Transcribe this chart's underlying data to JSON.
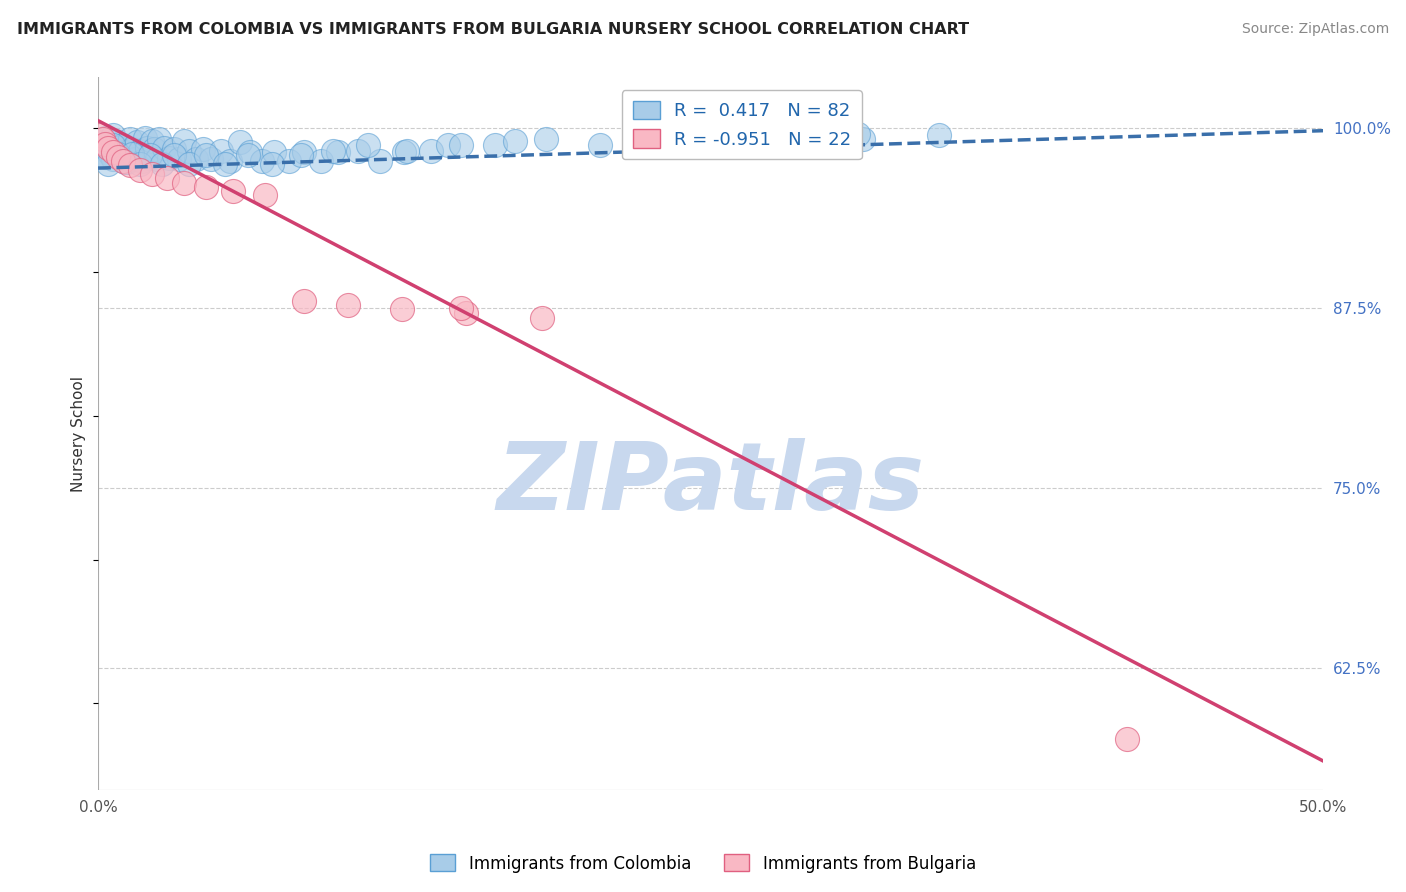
{
  "title": "IMMIGRANTS FROM COLOMBIA VS IMMIGRANTS FROM BULGARIA NURSERY SCHOOL CORRELATION CHART",
  "source": "Source: ZipAtlas.com",
  "ylabel": "Nursery School",
  "xlim": [
    0.0,
    0.5
  ],
  "ylim": [
    0.54,
    1.035
  ],
  "yticks": [
    1.0,
    0.875,
    0.75,
    0.625
  ],
  "ytick_labels": [
    "100.0%",
    "87.5%",
    "75.0%",
    "62.5%"
  ],
  "xticks": [
    0.0,
    0.1,
    0.2,
    0.3,
    0.4,
    0.5
  ],
  "xtick_labels": [
    "0.0%",
    "",
    "",
    "",
    "",
    "50.0%"
  ],
  "colombia_R": 0.417,
  "colombia_N": 82,
  "bulgaria_R": -0.951,
  "bulgaria_N": 22,
  "colombia_color": "#a8cce8",
  "colombia_edge": "#5a9fd4",
  "bulgaria_color": "#f9b8c4",
  "bulgaria_edge": "#e06080",
  "trend_colombia_color": "#3a6faa",
  "trend_colombia_dash": "dashed",
  "trend_bulgaria_color": "#d04070",
  "background_color": "#ffffff",
  "grid_color": "#cccccc",
  "watermark": "ZIPatlas",
  "watermark_color": "#c8d8ee",
  "colombia_points_x": [
    0.001,
    0.002,
    0.003,
    0.003,
    0.004,
    0.005,
    0.006,
    0.006,
    0.007,
    0.008,
    0.009,
    0.01,
    0.011,
    0.012,
    0.013,
    0.014,
    0.015,
    0.016,
    0.017,
    0.018,
    0.019,
    0.02,
    0.021,
    0.022,
    0.023,
    0.024,
    0.025,
    0.027,
    0.029,
    0.031,
    0.033,
    0.035,
    0.037,
    0.04,
    0.043,
    0.046,
    0.05,
    0.054,
    0.058,
    0.062,
    0.067,
    0.072,
    0.078,
    0.084,
    0.091,
    0.098,
    0.106,
    0.115,
    0.125,
    0.136,
    0.002,
    0.004,
    0.006,
    0.008,
    0.011,
    0.014,
    0.017,
    0.021,
    0.026,
    0.031,
    0.037,
    0.044,
    0.052,
    0.061,
    0.071,
    0.083,
    0.096,
    0.11,
    0.126,
    0.143,
    0.162,
    0.183,
    0.205,
    0.229,
    0.255,
    0.283,
    0.312,
    0.343,
    0.276,
    0.31,
    0.148,
    0.17
  ],
  "colombia_points_y": [
    0.99,
    0.985,
    0.993,
    0.98,
    0.987,
    0.982,
    0.995,
    0.978,
    0.991,
    0.986,
    0.979,
    0.988,
    0.983,
    0.976,
    0.992,
    0.985,
    0.978,
    0.99,
    0.984,
    0.977,
    0.993,
    0.986,
    0.979,
    0.991,
    0.985,
    0.978,
    0.992,
    0.986,
    0.979,
    0.985,
    0.978,
    0.991,
    0.984,
    0.978,
    0.985,
    0.978,
    0.984,
    0.977,
    0.99,
    0.983,
    0.977,
    0.983,
    0.977,
    0.983,
    0.977,
    0.983,
    0.984,
    0.977,
    0.983,
    0.984,
    0.981,
    0.975,
    0.988,
    0.982,
    0.976,
    0.982,
    0.975,
    0.981,
    0.975,
    0.981,
    0.975,
    0.981,
    0.975,
    0.981,
    0.975,
    0.981,
    0.984,
    0.988,
    0.984,
    0.988,
    0.988,
    0.992,
    0.988,
    0.992,
    0.992,
    0.995,
    0.992,
    0.995,
    0.993,
    0.996,
    0.988,
    0.991
  ],
  "bulgaria_points_x": [
    0.001,
    0.002,
    0.003,
    0.004,
    0.006,
    0.008,
    0.01,
    0.013,
    0.017,
    0.022,
    0.028,
    0.035,
    0.044,
    0.055,
    0.068,
    0.084,
    0.102,
    0.124,
    0.15,
    0.181,
    0.148,
    0.42
  ],
  "bulgaria_points_y": [
    0.995,
    0.992,
    0.989,
    0.986,
    0.983,
    0.98,
    0.977,
    0.974,
    0.971,
    0.968,
    0.965,
    0.962,
    0.959,
    0.956,
    0.953,
    0.88,
    0.877,
    0.874,
    0.871,
    0.868,
    0.875,
    0.575
  ],
  "colombia_trend_x": [
    0.0,
    0.5
  ],
  "colombia_trend_y": [
    0.972,
    0.998
  ],
  "bulgaria_trend_x": [
    0.0,
    0.5
  ],
  "bulgaria_trend_y": [
    1.005,
    0.56
  ]
}
